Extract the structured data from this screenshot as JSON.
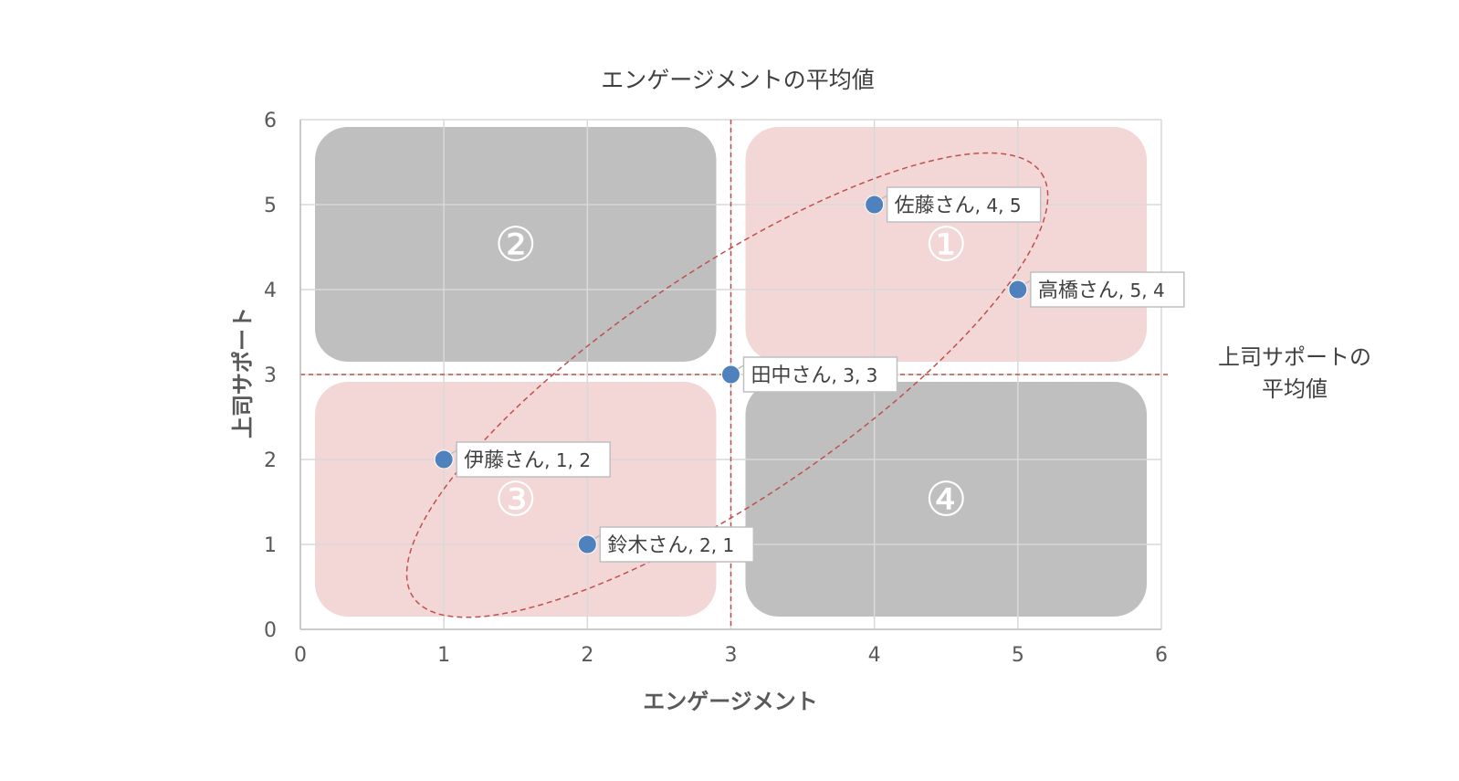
{
  "chart_data": {
    "type": "scatter",
    "title": "エンゲージメントの平均値",
    "xlabel": "エンゲージメント",
    "ylabel": "上司サポート",
    "xlim": [
      0,
      6
    ],
    "ylim": [
      0,
      6
    ],
    "xticks": [
      "0",
      "1",
      "2",
      "3",
      "4",
      "5",
      "6"
    ],
    "yticks": [
      "0",
      "1",
      "2",
      "3",
      "4",
      "5",
      "6"
    ],
    "grid": true,
    "reference_lines": {
      "x_mean": 3,
      "y_mean": 3,
      "y_mean_label": [
        "上司サポートの",
        "平均値"
      ],
      "color": "#c0504d"
    },
    "quadrants": [
      {
        "label": "①",
        "x_range": [
          3,
          6
        ],
        "y_range": [
          3,
          6
        ],
        "color": "#f2d7d6"
      },
      {
        "label": "②",
        "x_range": [
          0,
          3
        ],
        "y_range": [
          3,
          6
        ],
        "color": "#bfbfbf"
      },
      {
        "label": "③",
        "x_range": [
          0,
          3
        ],
        "y_range": [
          0,
          3
        ],
        "color": "#f2d7d6"
      },
      {
        "label": "④",
        "x_range": [
          3,
          6
        ],
        "y_range": [
          0,
          3
        ],
        "color": "#bfbfbf"
      }
    ],
    "points": [
      {
        "label": "佐藤さん",
        "x": 4,
        "y": 5,
        "value_text": "4, 5"
      },
      {
        "label": "高橋さん",
        "x": 5,
        "y": 4,
        "value_text": "5, 4"
      },
      {
        "label": "田中さん",
        "x": 3,
        "y": 3,
        "value_text": "3, 3"
      },
      {
        "label": "伊藤さん",
        "x": 1,
        "y": 2,
        "value_text": "1, 2"
      },
      {
        "label": "鈴木さん",
        "x": 2,
        "y": 1,
        "value_text": "2, 1"
      }
    ],
    "point_color": "#4f81bd",
    "ellipse_color": "#c0504d"
  }
}
